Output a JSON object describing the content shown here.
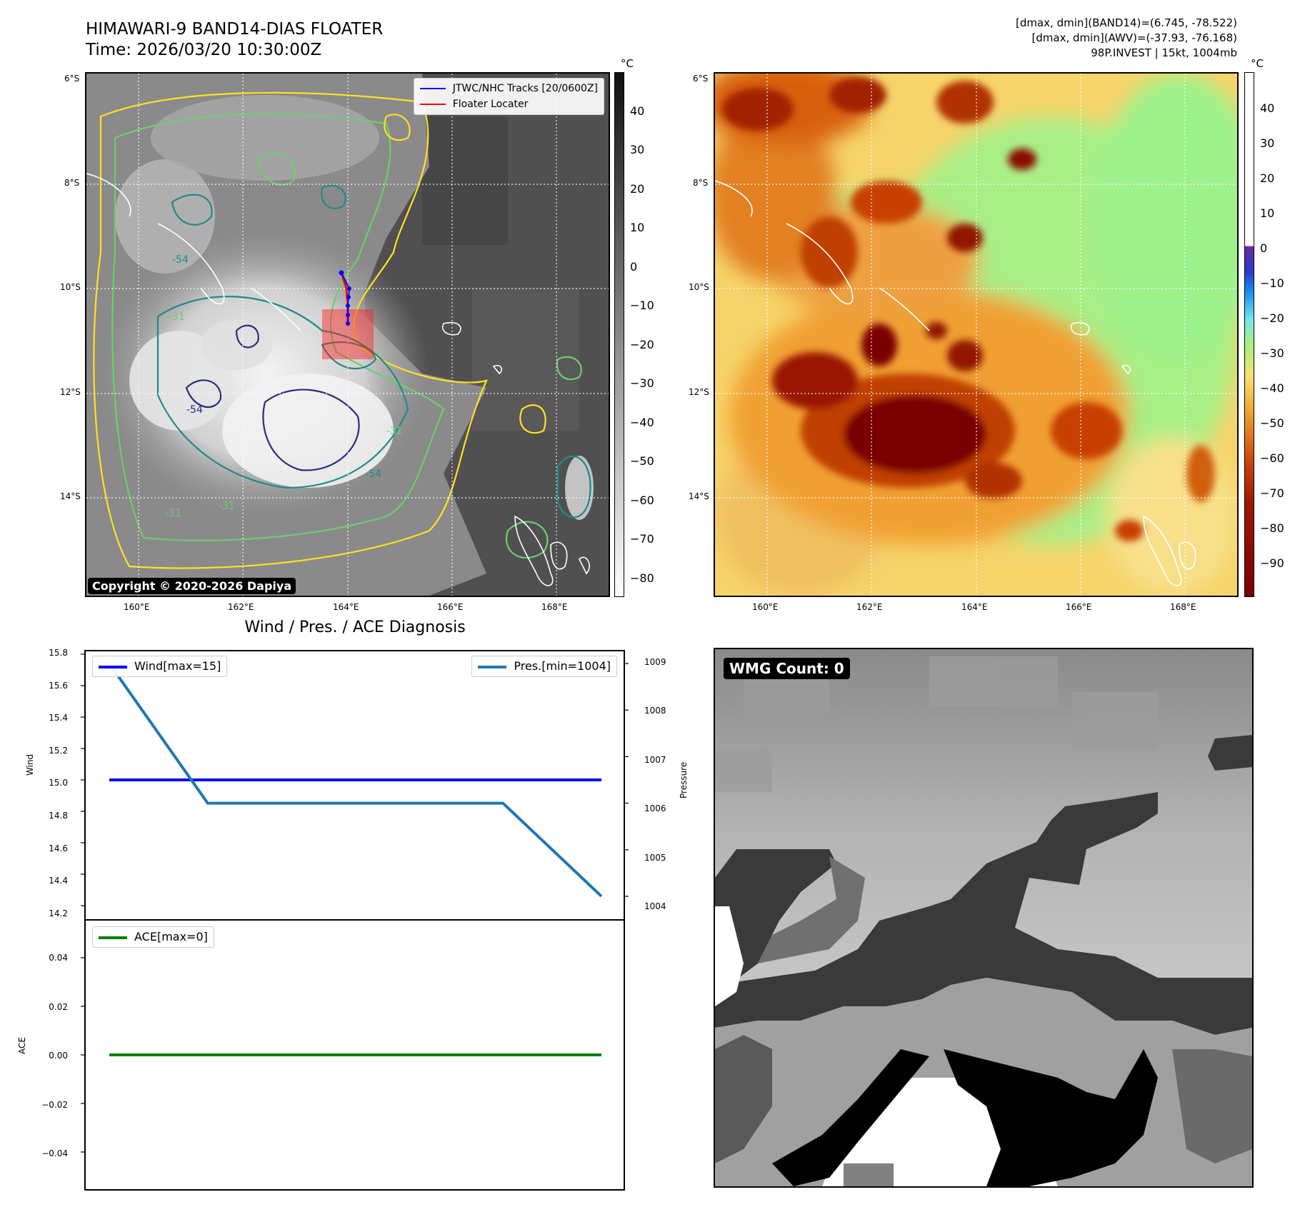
{
  "header": {
    "title_line1": "HIMAWARI-9 BAND14-DIAS FLOATER",
    "title_line2": "Time: 2026/03/20 10:30:00Z",
    "info_line1": "[dmax, dmin](BAND14)=(6.745, -78.522)",
    "info_line2": "[dmax, dmin](AWV)=(-37.93, -76.168)",
    "info_line3": "98P.INVEST | 15kt, 1004mb"
  },
  "maps": {
    "lat_ticks": [
      "6°S",
      "8°S",
      "10°S",
      "12°S",
      "14°S"
    ],
    "lon_ticks": [
      "160°E",
      "162°E",
      "164°E",
      "166°E",
      "168°E"
    ],
    "contour_labels": [
      "-54",
      "-31",
      "-54",
      "-31",
      "-54",
      "-31",
      "-31"
    ],
    "colorbar_unit": "°C"
  },
  "band14_map": {
    "legend_track": "JTWC/NHC Tracks [20/0600Z]",
    "legend_floater": "Floater Locater",
    "copyright": "Copyright © 2020-2026 Dapiya",
    "colorbar_ticks": [
      "40",
      "30",
      "20",
      "10",
      "0",
      "−10",
      "−20",
      "−30",
      "−40",
      "−50",
      "−60",
      "−70",
      "−80"
    ],
    "colors": {
      "track": "#0000ff",
      "floater": "#ff0000",
      "contour_cold": "#2a2a80",
      "contour_mid": "#1f8a8a",
      "contour_warm": "#6ccf6a",
      "contour_edge": "#ffe020"
    }
  },
  "awv_map": {
    "colorbar_ticks": [
      "40",
      "30",
      "20",
      "10",
      "0",
      "−10",
      "−20",
      "−30",
      "−40",
      "−50",
      "−60",
      "−70",
      "−80",
      "−90"
    ]
  },
  "diagnosis": {
    "title": "Wind / Pres. / ACE Diagnosis",
    "wind_ylabel": "Wind",
    "pres_ylabel": "Pressure",
    "ace_ylabel": "ACE",
    "wind_legend": "Wind[max=15]",
    "pres_legend": "Pres.[min=1004]",
    "ace_legend": "ACE[max=0]",
    "wind_ticks": [
      "15.8",
      "15.6",
      "15.4",
      "15.2",
      "15.0",
      "14.8",
      "14.6",
      "14.4",
      "14.2"
    ],
    "pres_ticks": [
      "1009",
      "1008",
      "1007",
      "1006",
      "1005",
      "1004"
    ],
    "ace_ticks": [
      "0.04",
      "0.02",
      "0.00",
      "−0.02",
      "−0.04"
    ]
  },
  "wmg": {
    "label": "WMG Count: 0"
  },
  "chart_data": [
    {
      "type": "line",
      "title": "Wind / Pres. / ACE Diagnosis",
      "x": [
        0,
        1,
        2,
        3,
        4,
        5
      ],
      "series": [
        {
          "name": "Wind[max=15]",
          "axis": "left",
          "values": [
            15,
            15,
            15,
            15,
            15,
            15
          ],
          "color": "#0000ff"
        },
        {
          "name": "Pres.[min=1004]",
          "axis": "right",
          "values": [
            1009,
            1006,
            1006,
            1006,
            1006,
            1004
          ],
          "color": "#1f77b4"
        }
      ],
      "ylabel": "Wind",
      "ylim": [
        14.2,
        15.8
      ],
      "y2label": "Pressure",
      "y2lim": [
        1003.8,
        1009.2
      ],
      "legend": [
        "top-left",
        "top-right"
      ]
    },
    {
      "type": "line",
      "x": [
        0,
        1,
        2,
        3,
        4,
        5
      ],
      "series": [
        {
          "name": "ACE[max=0]",
          "values": [
            0,
            0,
            0,
            0,
            0,
            0
          ],
          "color": "#008000"
        }
      ],
      "ylabel": "ACE",
      "ylim": [
        -0.055,
        0.055
      ],
      "legend": "top-left"
    }
  ]
}
